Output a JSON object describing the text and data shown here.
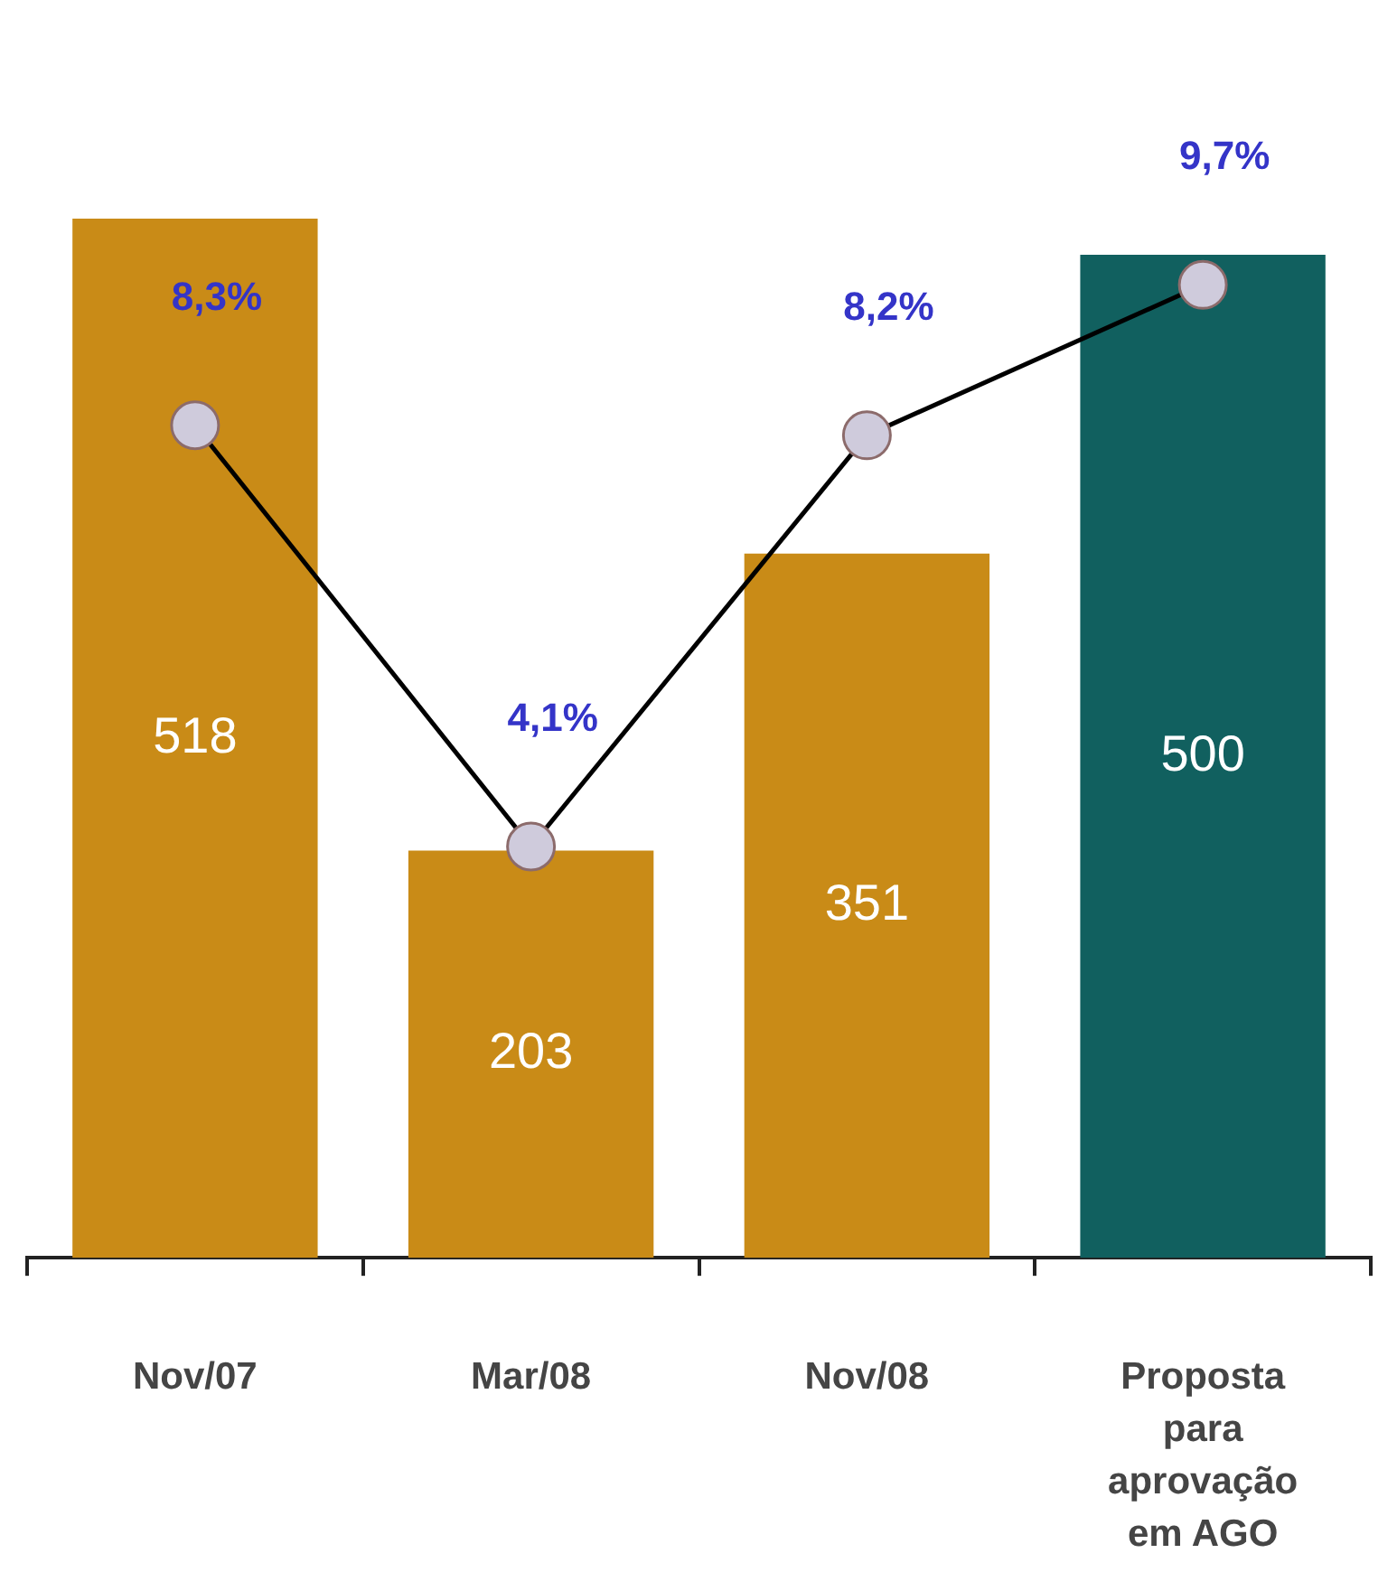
{
  "chart_data": {
    "type": "bar",
    "categories": [
      "Nov/07",
      "Mar/08",
      "Nov/08",
      "Proposta para aprovação em AGO"
    ],
    "series": [
      {
        "colors": [
          "#c98b17",
          "#c98b17",
          "#c98b17",
          "#11605f"
        ],
        "values": [
          518,
          203,
          351,
          500
        ]
      },
      {
        "type": "line",
        "axis": "y2",
        "color": "#000000",
        "values": [
          8.3,
          4.1,
          8.2,
          9.7
        ],
        "value_labels": [
          "8,3%",
          "4,1%",
          "8,2%",
          "9,7%"
        ]
      }
    ],
    "data_labels": true,
    "marker": "circle",
    "grid": false,
    "legend": false,
    "tick_labels": "x"
  }
}
